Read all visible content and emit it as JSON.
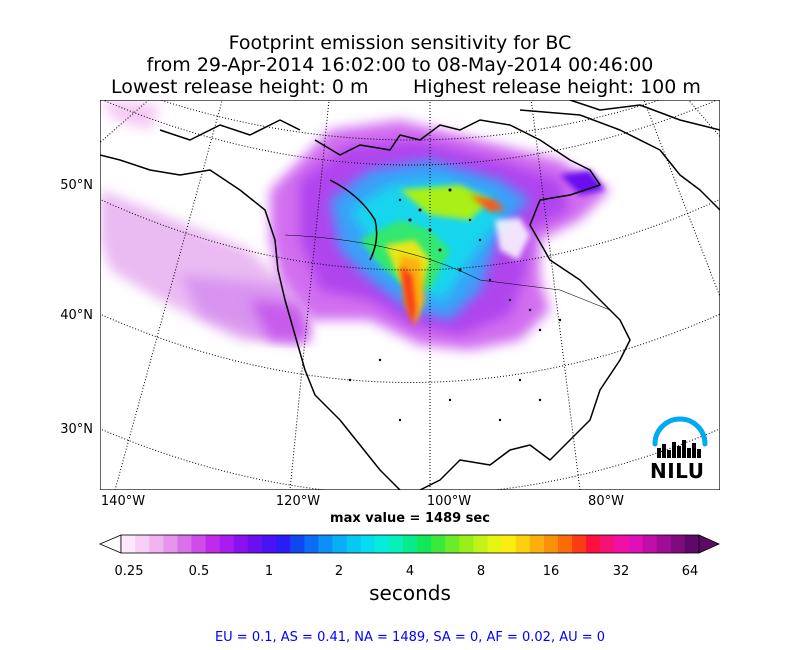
{
  "title": {
    "line1": "Footprint emission sensitivity for BC",
    "line2": "from 29-Apr-2014 16:02:00 to 08-May-2014 00:46:00",
    "line3_left": "Lowest release height: 0 m",
    "line3_right": "Highest release height: 100 m"
  },
  "map": {
    "lat_labels": [
      "50°N",
      "40°N",
      "30°N"
    ],
    "lon_labels": [
      "140°W",
      "120°W",
      "100°W",
      "80°W"
    ],
    "max_value": "max value = 1489 sec"
  },
  "colorbar": {
    "tick_labels": [
      "0.25",
      "0.5",
      "1",
      "2",
      "4",
      "8",
      "16",
      "32",
      "64"
    ],
    "unit": "seconds",
    "colors": [
      "#fce8fb",
      "#f6d0f6",
      "#f0b4f0",
      "#e694ec",
      "#dc70ea",
      "#cf4cea",
      "#c02aec",
      "#a81cf0",
      "#8a12f0",
      "#6a10f0",
      "#4a12f4",
      "#2a1cf6",
      "#1046f4",
      "#0a6ef4",
      "#0a90f6",
      "#08aef6",
      "#06c8f4",
      "#06dcf0",
      "#06ecdc",
      "#06f0b8",
      "#06ec8a",
      "#10e85a",
      "#3ce83a",
      "#6aec28",
      "#96f01c",
      "#c2f216",
      "#e8f412",
      "#fcec10",
      "#fcd00e",
      "#fcb00c",
      "#fc900a",
      "#fc6a0a",
      "#fc3a14",
      "#fc1040",
      "#f8107a",
      "#f010a8",
      "#e010b8",
      "#c00ea8",
      "#a00c96",
      "#800a80",
      "#60086a"
    ]
  },
  "footer": {
    "text": "EU = 0.1,  AS = 0.41,  NA = 1489,  SA = 0,  AF = 0.02,  AU = 0"
  },
  "logo": {
    "text": "NILU",
    "arc_color": "#00aaee"
  }
}
